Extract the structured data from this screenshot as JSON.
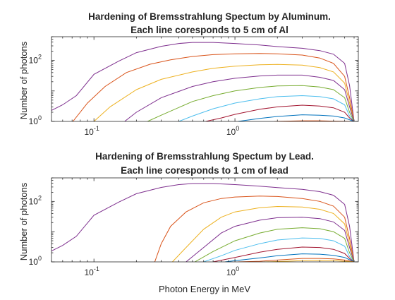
{
  "chart_data": [
    {
      "type": "line",
      "title_lines": [
        "Hardening of Bremsstrahlung Spectum by Aluminum.",
        "Each line coresponds to 5 cm of Al"
      ],
      "xlabel": "",
      "ylabel": "Number of photons",
      "x_scale": "log",
      "y_scale": "log",
      "xlim": [
        0.05,
        7.5
      ],
      "ylim": [
        1,
        600
      ],
      "x_ticks": [
        {
          "base": "10",
          "exp": "-1",
          "value": 0.1
        },
        {
          "base": "10",
          "exp": "0",
          "value": 1
        }
      ],
      "y_ticks": [
        {
          "base": "10",
          "exp": "0",
          "value": 1
        },
        {
          "base": "10",
          "exp": "2",
          "value": 100
        }
      ],
      "grid": false,
      "series": [
        {
          "color": "#7E2F8E",
          "points": [
            [
              0.05,
              2.3
            ],
            [
              0.06,
              3.5
            ],
            [
              0.075,
              7
            ],
            [
              0.1,
              35
            ],
            [
              0.15,
              95
            ],
            [
              0.2,
              180
            ],
            [
              0.3,
              290
            ],
            [
              0.4,
              360
            ],
            [
              0.5,
              390
            ],
            [
              0.7,
              390
            ],
            [
              1.0,
              360
            ],
            [
              1.5,
              320
            ],
            [
              2.0,
              285
            ],
            [
              3.0,
              250
            ],
            [
              4.0,
              210
            ],
            [
              5.0,
              160
            ],
            [
              6.0,
              80
            ],
            [
              6.5,
              15
            ],
            [
              7.0,
              1
            ]
          ]
        },
        {
          "color": "#D95319",
          "points": [
            [
              0.071,
              1
            ],
            [
              0.09,
              4
            ],
            [
              0.12,
              14
            ],
            [
              0.17,
              40
            ],
            [
              0.25,
              75
            ],
            [
              0.35,
              105
            ],
            [
              0.5,
              135
            ],
            [
              0.7,
              155
            ],
            [
              1.0,
              165
            ],
            [
              1.5,
              170
            ],
            [
              2.0,
              165
            ],
            [
              3.0,
              150
            ],
            [
              4.0,
              120
            ],
            [
              5.0,
              80
            ],
            [
              6.0,
              30
            ],
            [
              6.5,
              6
            ],
            [
              7.0,
              1
            ]
          ]
        },
        {
          "color": "#EDB120",
          "points": [
            [
              0.1,
              1
            ],
            [
              0.13,
              3
            ],
            [
              0.2,
              11
            ],
            [
              0.3,
              24
            ],
            [
              0.5,
              42
            ],
            [
              0.7,
              55
            ],
            [
              1.0,
              65
            ],
            [
              1.5,
              72
            ],
            [
              2.0,
              74
            ],
            [
              3.0,
              70
            ],
            [
              4.0,
              58
            ],
            [
              5.0,
              42
            ],
            [
              6.0,
              18
            ],
            [
              6.5,
              4
            ],
            [
              7.0,
              1
            ]
          ]
        },
        {
          "color": "#7E2F8E",
          "points": [
            [
              0.165,
              1
            ],
            [
              0.2,
              2
            ],
            [
              0.3,
              6
            ],
            [
              0.5,
              14
            ],
            [
              0.7,
              20
            ],
            [
              1.0,
              26
            ],
            [
              1.5,
              31
            ],
            [
              2.0,
              33
            ],
            [
              3.0,
              33
            ],
            [
              4.0,
              28
            ],
            [
              5.0,
              22
            ],
            [
              6.0,
              11
            ],
            [
              6.5,
              3
            ],
            [
              7.0,
              1
            ]
          ]
        },
        {
          "color": "#77AC30",
          "points": [
            [
              0.24,
              1
            ],
            [
              0.3,
              1.6
            ],
            [
              0.5,
              4.5
            ],
            [
              0.7,
              7
            ],
            [
              1.0,
              10
            ],
            [
              1.5,
              13
            ],
            [
              2.0,
              14.5
            ],
            [
              3.0,
              15
            ],
            [
              4.0,
              13.5
            ],
            [
              5.0,
              11
            ],
            [
              6.0,
              6
            ],
            [
              6.5,
              2
            ],
            [
              7.0,
              1
            ]
          ]
        },
        {
          "color": "#4DBEEE",
          "points": [
            [
              0.4,
              1
            ],
            [
              0.5,
              1.5
            ],
            [
              0.7,
              2.6
            ],
            [
              1.0,
              4
            ],
            [
              1.5,
              5.5
            ],
            [
              2.0,
              6.5
            ],
            [
              3.0,
              7
            ],
            [
              4.0,
              6.5
            ],
            [
              5.0,
              5.5
            ],
            [
              6.0,
              3.5
            ],
            [
              6.5,
              1.5
            ],
            [
              7.0,
              1
            ]
          ]
        },
        {
          "color": "#A2142F",
          "points": [
            [
              0.62,
              1
            ],
            [
              0.8,
              1.3
            ],
            [
              1.0,
              1.7
            ],
            [
              1.5,
              2.5
            ],
            [
              2.0,
              3
            ],
            [
              3.0,
              3.4
            ],
            [
              4.0,
              3.2
            ],
            [
              5.0,
              2.8
            ],
            [
              6.0,
              2
            ],
            [
              6.5,
              1.3
            ],
            [
              7.0,
              1
            ]
          ]
        },
        {
          "color": "#0072BD",
          "points": [
            [
              1.05,
              1
            ],
            [
              1.5,
              1.25
            ],
            [
              2.0,
              1.45
            ],
            [
              3.0,
              1.65
            ],
            [
              4.0,
              1.6
            ],
            [
              5.0,
              1.5
            ],
            [
              6.0,
              1.3
            ],
            [
              7.0,
              1
            ]
          ]
        },
        {
          "color": "#D95319",
          "points": [
            [
              1.9,
              1
            ],
            [
              3.0,
              1.05
            ],
            [
              4.0,
              1.05
            ],
            [
              5.0,
              1.02
            ],
            [
              7.0,
              1
            ]
          ]
        }
      ]
    },
    {
      "type": "line",
      "title_lines": [
        "Hardening of Bremsstrahlung Spectum by Lead.",
        "Each line coresponds to 1 cm of lead"
      ],
      "xlabel": "Photon Energy in MeV",
      "ylabel": "Number of photons",
      "x_scale": "log",
      "y_scale": "log",
      "xlim": [
        0.05,
        7.5
      ],
      "ylim": [
        1,
        600
      ],
      "x_ticks": [
        {
          "base": "10",
          "exp": "-1",
          "value": 0.1
        },
        {
          "base": "10",
          "exp": "0",
          "value": 1
        }
      ],
      "y_ticks": [
        {
          "base": "10",
          "exp": "0",
          "value": 1
        },
        {
          "base": "10",
          "exp": "2",
          "value": 100
        }
      ],
      "grid": false,
      "series": [
        {
          "color": "#7E2F8E",
          "points": [
            [
              0.05,
              2.3
            ],
            [
              0.06,
              3.5
            ],
            [
              0.075,
              7
            ],
            [
              0.1,
              35
            ],
            [
              0.15,
              95
            ],
            [
              0.2,
              180
            ],
            [
              0.3,
              290
            ],
            [
              0.4,
              360
            ],
            [
              0.5,
              390
            ],
            [
              0.7,
              390
            ],
            [
              1.0,
              360
            ],
            [
              1.5,
              320
            ],
            [
              2.0,
              285
            ],
            [
              3.0,
              250
            ],
            [
              4.0,
              210
            ],
            [
              5.0,
              160
            ],
            [
              6.0,
              80
            ],
            [
              6.5,
              15
            ],
            [
              7.0,
              1
            ]
          ]
        },
        {
          "color": "#D95319",
          "points": [
            [
              0.27,
              1
            ],
            [
              0.3,
              4
            ],
            [
              0.35,
              15
            ],
            [
              0.45,
              45
            ],
            [
              0.6,
              90
            ],
            [
              0.8,
              125
            ],
            [
              1.0,
              140
            ],
            [
              1.5,
              150
            ],
            [
              2.0,
              145
            ],
            [
              3.0,
              125
            ],
            [
              4.0,
              100
            ],
            [
              5.0,
              70
            ],
            [
              6.0,
              30
            ],
            [
              6.5,
              6
            ],
            [
              7.0,
              1
            ]
          ]
        },
        {
          "color": "#EDB120",
          "points": [
            [
              0.36,
              1
            ],
            [
              0.45,
              3
            ],
            [
              0.6,
              12
            ],
            [
              0.8,
              30
            ],
            [
              1.0,
              45
            ],
            [
              1.5,
              62
            ],
            [
              2.0,
              68
            ],
            [
              3.0,
              65
            ],
            [
              4.0,
              55
            ],
            [
              5.0,
              40
            ],
            [
              6.0,
              18
            ],
            [
              6.5,
              4
            ],
            [
              7.0,
              1
            ]
          ]
        },
        {
          "color": "#7E2F8E",
          "points": [
            [
              0.45,
              1
            ],
            [
              0.6,
              3
            ],
            [
              0.8,
              9
            ],
            [
              1.0,
              15
            ],
            [
              1.5,
              24
            ],
            [
              2.0,
              29
            ],
            [
              3.0,
              30
            ],
            [
              4.0,
              27
            ],
            [
              5.0,
              21
            ],
            [
              6.0,
              11
            ],
            [
              6.5,
              3
            ],
            [
              7.0,
              1
            ]
          ]
        },
        {
          "color": "#77AC30",
          "points": [
            [
              0.52,
              1
            ],
            [
              0.7,
              2.2
            ],
            [
              1.0,
              5
            ],
            [
              1.5,
              9
            ],
            [
              2.0,
              12
            ],
            [
              3.0,
              13.5
            ],
            [
              4.0,
              12.5
            ],
            [
              5.0,
              10
            ],
            [
              6.0,
              6
            ],
            [
              6.5,
              2
            ],
            [
              7.0,
              1
            ]
          ]
        },
        {
          "color": "#4DBEEE",
          "points": [
            [
              0.6,
              1
            ],
            [
              0.8,
              1.6
            ],
            [
              1.0,
              2.4
            ],
            [
              1.5,
              4
            ],
            [
              2.0,
              5.3
            ],
            [
              3.0,
              6.2
            ],
            [
              4.0,
              6
            ],
            [
              5.0,
              5
            ],
            [
              6.0,
              3.3
            ],
            [
              6.5,
              1.5
            ],
            [
              7.0,
              1
            ]
          ]
        },
        {
          "color": "#A2142F",
          "points": [
            [
              0.7,
              1
            ],
            [
              1.0,
              1.4
            ],
            [
              1.5,
              2.1
            ],
            [
              2.0,
              2.6
            ],
            [
              3.0,
              3.1
            ],
            [
              4.0,
              3
            ],
            [
              5.0,
              2.6
            ],
            [
              6.0,
              1.9
            ],
            [
              6.5,
              1.3
            ],
            [
              7.0,
              1
            ]
          ]
        },
        {
          "color": "#0072BD",
          "points": [
            [
              0.85,
              1
            ],
            [
              1.0,
              1.1
            ],
            [
              1.5,
              1.35
            ],
            [
              2.0,
              1.6
            ],
            [
              3.0,
              1.85
            ],
            [
              4.0,
              1.8
            ],
            [
              5.0,
              1.65
            ],
            [
              6.0,
              1.4
            ],
            [
              7.0,
              1
            ]
          ]
        },
        {
          "color": "#D95319",
          "points": [
            [
              1.05,
              1
            ],
            [
              1.5,
              1.05
            ],
            [
              2.0,
              1.15
            ],
            [
              3.0,
              1.3
            ],
            [
              4.0,
              1.3
            ],
            [
              5.0,
              1.25
            ],
            [
              6.0,
              1.15
            ],
            [
              7.0,
              1
            ]
          ]
        },
        {
          "color": "#EDB120",
          "points": [
            [
              1.6,
              1
            ],
            [
              2.0,
              1.03
            ],
            [
              3.0,
              1.1
            ],
            [
              4.0,
              1.12
            ],
            [
              5.0,
              1.1
            ],
            [
              6.0,
              1.05
            ],
            [
              7.0,
              1
            ]
          ]
        }
      ]
    }
  ]
}
